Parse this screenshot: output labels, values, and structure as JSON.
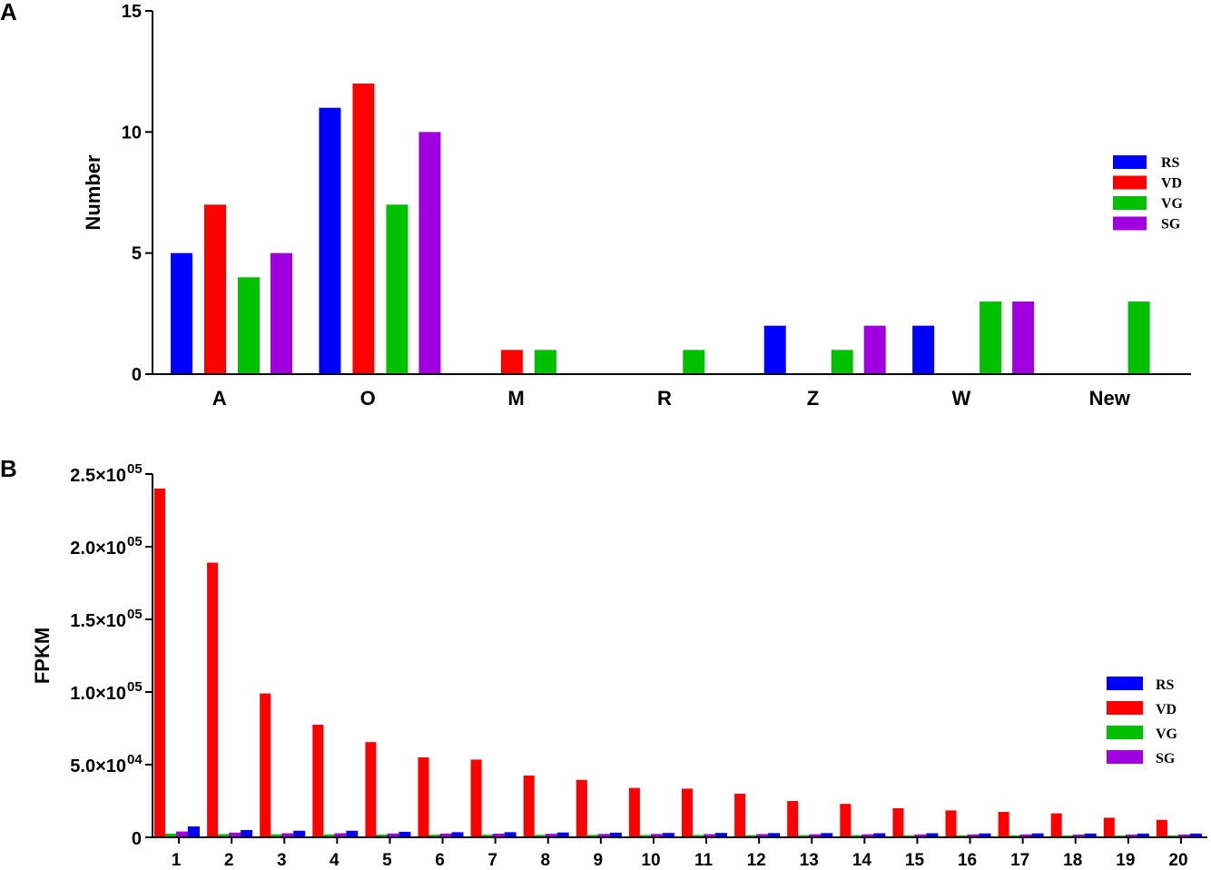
{
  "chart_data": [
    {
      "panel": "A",
      "type": "bar",
      "ylabel": "Number",
      "xlabel": "",
      "ylim": [
        0,
        15
      ],
      "yticks": [
        "0",
        "5",
        "10",
        "15"
      ],
      "categories": [
        "A",
        "O",
        "M",
        "R",
        "Z",
        "W",
        "New"
      ],
      "series": [
        {
          "name": "RS",
          "color": "#0000ff",
          "values": [
            5,
            11,
            0,
            0,
            2,
            2,
            0
          ]
        },
        {
          "name": "VD",
          "color": "#ff0000",
          "values": [
            7,
            12,
            1,
            0,
            0,
            0,
            0
          ]
        },
        {
          "name": "VG",
          "color": "#00c000",
          "values": [
            4,
            7,
            1,
            1,
            1,
            3,
            3
          ]
        },
        {
          "name": "SG",
          "color": "#a000e0",
          "values": [
            5,
            10,
            0,
            0,
            2,
            3,
            0
          ]
        }
      ],
      "legend_position": "right",
      "grid": false
    },
    {
      "panel": "B",
      "type": "bar",
      "ylabel": "FPKM",
      "xlabel": "",
      "ylim": [
        0,
        250000
      ],
      "yticks": [
        {
          "value": 0,
          "mantissa": "0",
          "exponent": ""
        },
        {
          "value": 50000,
          "mantissa": "5.0×10",
          "exponent": "04"
        },
        {
          "value": 100000,
          "mantissa": "1.0×10",
          "exponent": "05"
        },
        {
          "value": 150000,
          "mantissa": "1.5×10",
          "exponent": "05"
        },
        {
          "value": 200000,
          "mantissa": "2.0×10",
          "exponent": "05"
        },
        {
          "value": 250000,
          "mantissa": "2.5×10",
          "exponent": "05"
        }
      ],
      "categories": [
        "1",
        "2",
        "3",
        "4",
        "5",
        "6",
        "7",
        "8",
        "9",
        "10",
        "11",
        "12",
        "13",
        "14",
        "15",
        "16",
        "17",
        "18",
        "19",
        "20"
      ],
      "series": [
        {
          "name": "VG",
          "color": "#00c000",
          "values": [
            2500,
            2200,
            2100,
            2000,
            1900,
            1800,
            1800,
            1700,
            1700,
            1600,
            1600,
            1500,
            1500,
            1500,
            1400,
            1400,
            1400,
            1300,
            1300,
            1300
          ]
        },
        {
          "name": "VD",
          "color": "#ff0000",
          "values": [
            240000,
            189000,
            99000,
            77500,
            65500,
            55000,
            53500,
            42500,
            39500,
            34000,
            33500,
            30000,
            25000,
            23000,
            20000,
            18500,
            17500,
            16500,
            13500,
            12000
          ]
        },
        {
          "name": "SG",
          "color": "#a000e0",
          "values": [
            4000,
            3200,
            2800,
            2800,
            2600,
            2600,
            2500,
            2400,
            2300,
            2300,
            2200,
            2200,
            2100,
            2100,
            2000,
            2000,
            2000,
            1900,
            1900,
            1900
          ]
        },
        {
          "name": "RS",
          "color": "#0000ff",
          "values": [
            7500,
            5000,
            4500,
            4500,
            3800,
            3500,
            3500,
            3300,
            3200,
            3000,
            3000,
            2900,
            2900,
            2800,
            2800,
            2700,
            2700,
            2600,
            2600,
            2600
          ]
        }
      ],
      "legend": [
        {
          "name": "RS",
          "color": "#0000ff"
        },
        {
          "name": "VD",
          "color": "#ff0000"
        },
        {
          "name": "VG",
          "color": "#00c000"
        },
        {
          "name": "SG",
          "color": "#a000e0"
        }
      ],
      "legend_position": "right",
      "grid": false
    }
  ]
}
